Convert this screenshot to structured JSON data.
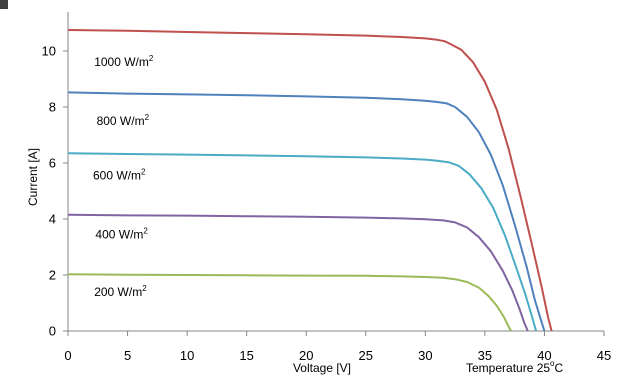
{
  "chart_data": {
    "type": "line",
    "xlabel": "Voltage [V]",
    "ylabel": "Current [A]",
    "xlim": [
      0,
      45
    ],
    "ylim": [
      0,
      11
    ],
    "x_ticks": [
      0,
      5,
      10,
      15,
      20,
      25,
      30,
      35,
      40,
      45
    ],
    "y_ticks": [
      0,
      2,
      4,
      6,
      8,
      10
    ],
    "grid": false,
    "annotation": {
      "prefix": "Temperature 25",
      "superscript": "o",
      "suffix": "C"
    },
    "series": [
      {
        "name": "1000 W/m²",
        "label": {
          "text": "1000 W/m",
          "sup": "2",
          "x": 2.2,
          "y": 9.6
        },
        "color": "#c0504d",
        "points": [
          [
            0,
            10.75
          ],
          [
            5,
            10.72
          ],
          [
            10,
            10.68
          ],
          [
            15,
            10.64
          ],
          [
            20,
            10.6
          ],
          [
            25,
            10.55
          ],
          [
            28,
            10.5
          ],
          [
            30,
            10.45
          ],
          [
            31,
            10.4
          ],
          [
            31.6,
            10.35
          ],
          [
            32,
            10.27
          ],
          [
            33,
            10.05
          ],
          [
            34,
            9.6
          ],
          [
            35,
            8.9
          ],
          [
            36,
            7.9
          ],
          [
            37,
            6.5
          ],
          [
            38,
            4.8
          ],
          [
            39,
            3.0
          ],
          [
            39.8,
            1.5
          ],
          [
            40.3,
            0.5
          ],
          [
            40.6,
            0
          ]
        ]
      },
      {
        "name": "800 W/m²",
        "label": {
          "text": "800 W/m",
          "sup": "2",
          "x": 2.4,
          "y": 7.5
        },
        "color": "#4f81bd",
        "points": [
          [
            0,
            8.52
          ],
          [
            5,
            8.48
          ],
          [
            10,
            8.45
          ],
          [
            15,
            8.42
          ],
          [
            20,
            8.38
          ],
          [
            25,
            8.33
          ],
          [
            28,
            8.28
          ],
          [
            30,
            8.22
          ],
          [
            31,
            8.18
          ],
          [
            31.8,
            8.13
          ],
          [
            32.5,
            8.0
          ],
          [
            33.5,
            7.65
          ],
          [
            34.5,
            7.1
          ],
          [
            35.5,
            6.3
          ],
          [
            36.5,
            5.2
          ],
          [
            37.5,
            3.8
          ],
          [
            38.5,
            2.3
          ],
          [
            39.2,
            1.1
          ],
          [
            39.7,
            0.4
          ],
          [
            40,
            0
          ]
        ]
      },
      {
        "name": "600 W/m²",
        "label": {
          "text": "600 W/m",
          "sup": "2",
          "x": 2.1,
          "y": 5.55
        },
        "color": "#4bacc6",
        "points": [
          [
            0,
            6.35
          ],
          [
            5,
            6.32
          ],
          [
            10,
            6.3
          ],
          [
            15,
            6.27
          ],
          [
            20,
            6.24
          ],
          [
            25,
            6.2
          ],
          [
            28,
            6.16
          ],
          [
            30,
            6.12
          ],
          [
            31,
            6.08
          ],
          [
            32,
            6.02
          ],
          [
            32.8,
            5.9
          ],
          [
            33.7,
            5.6
          ],
          [
            34.7,
            5.1
          ],
          [
            35.7,
            4.4
          ],
          [
            36.7,
            3.4
          ],
          [
            37.6,
            2.3
          ],
          [
            38.4,
            1.3
          ],
          [
            38.9,
            0.6
          ],
          [
            39.3,
            0
          ]
        ]
      },
      {
        "name": "400 W/m²",
        "label": {
          "text": "400 W/m",
          "sup": "2",
          "x": 2.3,
          "y": 3.45
        },
        "color": "#8064a2",
        "points": [
          [
            0,
            4.15
          ],
          [
            5,
            4.13
          ],
          [
            10,
            4.12
          ],
          [
            15,
            4.1
          ],
          [
            20,
            4.08
          ],
          [
            25,
            4.05
          ],
          [
            28,
            4.02
          ],
          [
            30,
            3.99
          ],
          [
            31.5,
            3.95
          ],
          [
            32.5,
            3.88
          ],
          [
            33.5,
            3.7
          ],
          [
            34.5,
            3.35
          ],
          [
            35.5,
            2.85
          ],
          [
            36.5,
            2.15
          ],
          [
            37.3,
            1.45
          ],
          [
            37.9,
            0.8
          ],
          [
            38.3,
            0.3
          ],
          [
            38.6,
            0
          ]
        ]
      },
      {
        "name": "200 W/m²",
        "label": {
          "text": "200 W/m",
          "sup": "2",
          "x": 2.2,
          "y": 1.4
        },
        "color": "#9bbb59",
        "points": [
          [
            0,
            2.03
          ],
          [
            5,
            2.01
          ],
          [
            10,
            2.0
          ],
          [
            15,
            1.99
          ],
          [
            20,
            1.98
          ],
          [
            25,
            1.97
          ],
          [
            28,
            1.95
          ],
          [
            30,
            1.93
          ],
          [
            31.5,
            1.9
          ],
          [
            32.5,
            1.85
          ],
          [
            33.5,
            1.75
          ],
          [
            34.5,
            1.55
          ],
          [
            35.3,
            1.25
          ],
          [
            36,
            0.9
          ],
          [
            36.6,
            0.5
          ],
          [
            37,
            0.15
          ],
          [
            37.2,
            0
          ]
        ]
      }
    ]
  }
}
